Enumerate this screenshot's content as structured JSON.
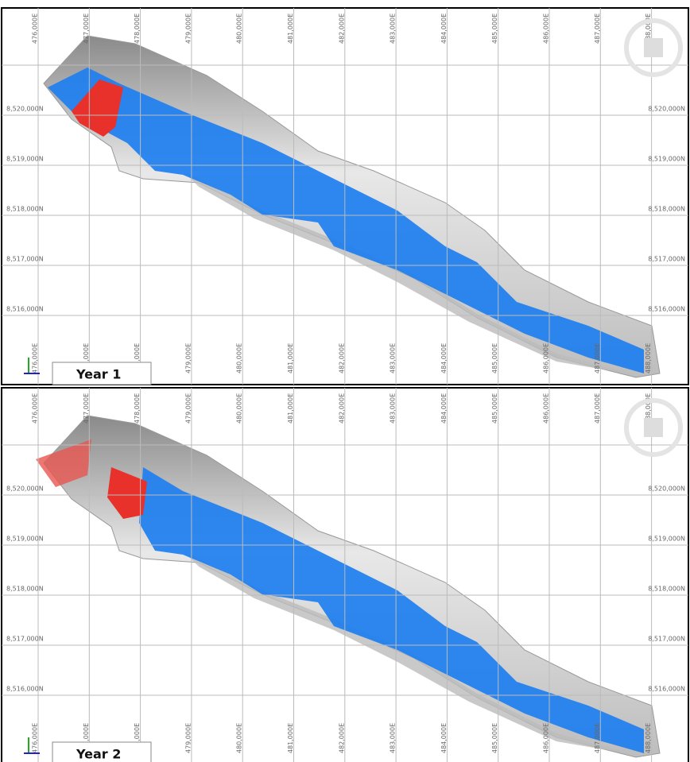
{
  "grid": {
    "eastings": [
      "476,000E",
      "477,000E",
      "478,000E",
      "479,000E",
      "480,000E",
      "481,000E",
      "482,000E",
      "483,000E",
      "484,000E",
      "485,000E",
      "486,000E",
      "487,000E",
      "488,000E"
    ],
    "northings": [
      "8,520,000N",
      "8,519,000N",
      "8,518,000N",
      "8,517,000N",
      "8,516,000N"
    ]
  },
  "panels": [
    {
      "label": "Year 1"
    },
    {
      "label": "Year 2"
    }
  ]
}
